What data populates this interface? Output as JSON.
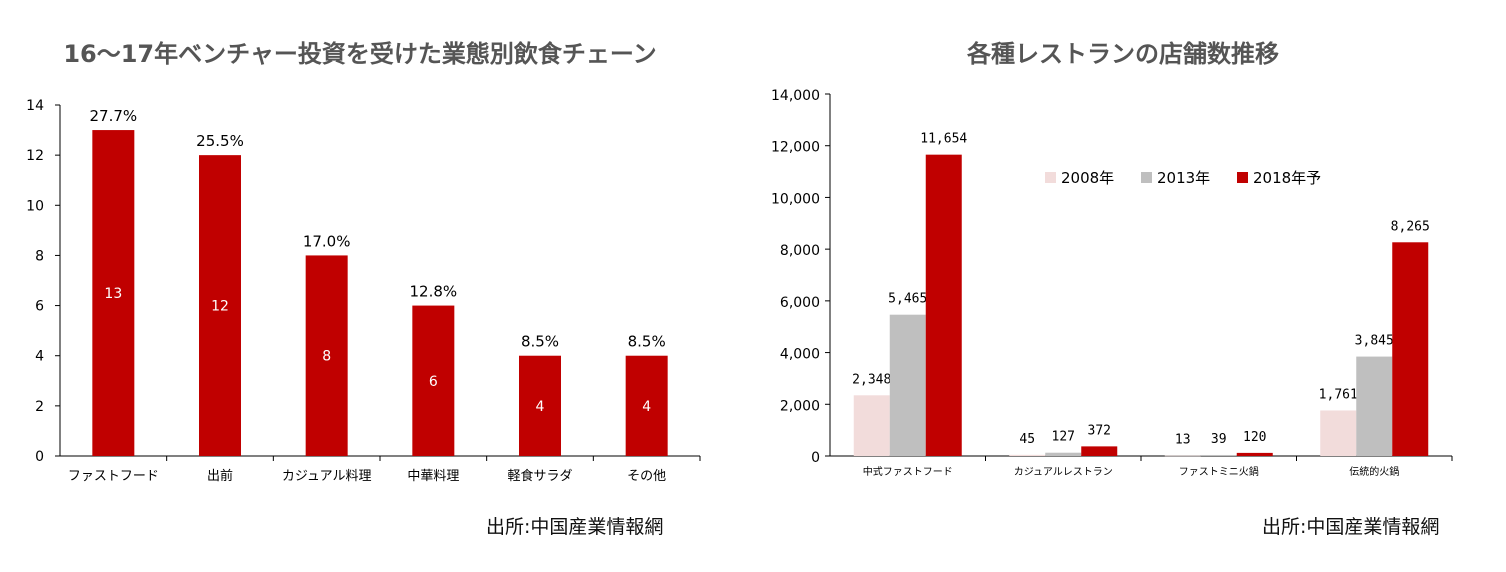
{
  "colors": {
    "red": "#c00000",
    "gray": "#bfbfbf",
    "pink": "#f2dcdb",
    "axis": "#000000"
  },
  "chart_data": [
    {
      "type": "bar",
      "title": "16〜17年ベンチャー投資を受けた業態別飲食チェーン",
      "categories": [
        "ファストフード",
        "出前",
        "カジュアル料理",
        "中華料理",
        "軽食サラダ",
        "その他"
      ],
      "values": [
        13,
        12,
        8,
        6,
        4,
        4
      ],
      "value_labels": [
        "13",
        "12",
        "8",
        "6",
        "4",
        "4"
      ],
      "percent_labels": [
        "27.7%",
        "25.5%",
        "17.0%",
        "12.8%",
        "8.5%",
        "8.5%"
      ],
      "ylim": [
        0,
        14
      ],
      "yticks": [
        0,
        2,
        4,
        6,
        8,
        10,
        12,
        14
      ],
      "ytick_labels": [
        "0",
        "2",
        "4",
        "6",
        "8",
        "10",
        "12",
        "14"
      ],
      "xlabel": "",
      "ylabel": "",
      "grid": false,
      "source": "出所:中国産業情報網"
    },
    {
      "type": "bar",
      "title": "各種レストランの店舗数推移",
      "categories": [
        "中式ファストフード",
        "カジュアルレストラン",
        "ファストミニ火鍋",
        "伝統的火鍋"
      ],
      "series": [
        {
          "name": "2008年",
          "values": [
            2348,
            45,
            13,
            1761
          ],
          "labels": [
            "2,348",
            "45",
            "13",
            "1,761"
          ]
        },
        {
          "name": "2013年",
          "values": [
            5465,
            127,
            39,
            3845
          ],
          "labels": [
            "5,465",
            "127",
            "39",
            "3,845"
          ]
        },
        {
          "name": "2018年予",
          "values": [
            11654,
            372,
            120,
            8265
          ],
          "labels": [
            "11,654",
            "372",
            "120",
            "8,265"
          ]
        }
      ],
      "ylim": [
        0,
        14000
      ],
      "yticks": [
        0,
        2000,
        4000,
        6000,
        8000,
        10000,
        12000,
        14000
      ],
      "ytick_labels": [
        "0",
        "2,000",
        "4,000",
        "6,000",
        "8,000",
        "10,000",
        "12,000",
        "14,000"
      ],
      "xlabel": "",
      "ylabel": "",
      "grid": false,
      "legend": "inside-top",
      "source": "出所:中国産業情報網"
    }
  ]
}
